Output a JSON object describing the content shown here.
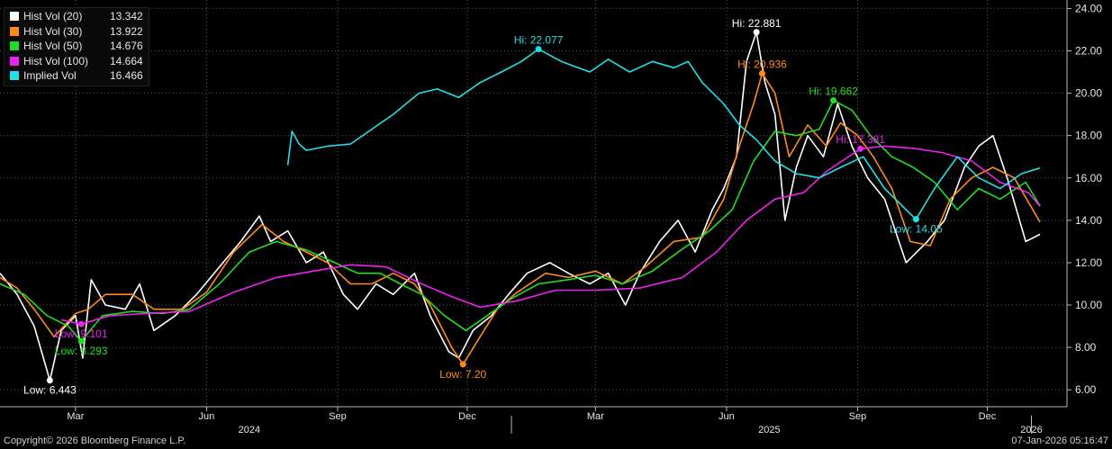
{
  "chart_data": {
    "type": "line",
    "ylim": [
      5.2,
      24.4
    ],
    "y_ticks": [
      "24.00",
      "22.00",
      "20.00",
      "18.00",
      "16.00",
      "14.00",
      "12.00",
      "10.00",
      "8.00",
      "6.00"
    ],
    "x_range": [
      "2024-01-08",
      "2026-01-07"
    ],
    "x_ticks_months": [
      {
        "date": "2024-03-01",
        "label": "Mar"
      },
      {
        "date": "2024-06-01",
        "label": "Jun"
      },
      {
        "date": "2024-09-01",
        "label": "Sep"
      },
      {
        "date": "2024-12-01",
        "label": "Dec"
      },
      {
        "date": "2025-03-01",
        "label": "Mar"
      },
      {
        "date": "2025-06-01",
        "label": "Jun"
      },
      {
        "date": "2025-09-01",
        "label": "Sep"
      },
      {
        "date": "2025-12-01",
        "label": "Dec"
      }
    ],
    "x_ticks_years": [
      {
        "date": "2024-07-01",
        "label": "2024"
      },
      {
        "date": "2025-07-01",
        "label": "2025"
      },
      {
        "date": "2026-01-01",
        "label": "2026"
      }
    ],
    "grid": true,
    "legend_position": "top-left",
    "series": [
      {
        "name": "Hist Vol (20)",
        "last": "13.342",
        "color": "#ffffff",
        "points": [
          [
            "2024-01-08",
            11.5
          ],
          [
            "2024-01-20",
            10.5
          ],
          [
            "2024-02-01",
            9.0
          ],
          [
            "2024-02-12",
            6.44
          ],
          [
            "2024-02-20",
            8.8
          ],
          [
            "2024-03-01",
            9.5
          ],
          [
            "2024-03-06",
            7.5
          ],
          [
            "2024-03-12",
            11.2
          ],
          [
            "2024-03-22",
            10.0
          ],
          [
            "2024-04-05",
            9.8
          ],
          [
            "2024-04-15",
            11.0
          ],
          [
            "2024-04-25",
            8.8
          ],
          [
            "2024-05-10",
            9.5
          ],
          [
            "2024-05-25",
            10.5
          ],
          [
            "2024-06-10",
            11.8
          ],
          [
            "2024-06-25",
            13.0
          ],
          [
            "2024-07-08",
            14.2
          ],
          [
            "2024-07-16",
            13.0
          ],
          [
            "2024-07-28",
            13.5
          ],
          [
            "2024-08-10",
            12.0
          ],
          [
            "2024-08-22",
            12.5
          ],
          [
            "2024-09-05",
            10.5
          ],
          [
            "2024-09-15",
            9.8
          ],
          [
            "2024-09-28",
            11.0
          ],
          [
            "2024-10-10",
            10.5
          ],
          [
            "2024-10-25",
            11.5
          ],
          [
            "2024-11-05",
            9.5
          ],
          [
            "2024-11-18",
            7.8
          ],
          [
            "2024-11-25",
            7.5
          ],
          [
            "2024-12-05",
            8.8
          ],
          [
            "2024-12-18",
            9.5
          ],
          [
            "2024-12-30",
            10.5
          ],
          [
            "2025-01-12",
            11.5
          ],
          [
            "2025-01-28",
            12.0
          ],
          [
            "2025-02-10",
            11.5
          ],
          [
            "2025-02-25",
            11.0
          ],
          [
            "2025-03-10",
            11.5
          ],
          [
            "2025-03-22",
            10.0
          ],
          [
            "2025-04-01",
            11.5
          ],
          [
            "2025-04-15",
            13.0
          ],
          [
            "2025-04-28",
            14.0
          ],
          [
            "2025-05-10",
            12.5
          ],
          [
            "2025-05-22",
            14.5
          ],
          [
            "2025-05-30",
            15.5
          ],
          [
            "2025-06-08",
            17.0
          ],
          [
            "2025-06-15",
            21.5
          ],
          [
            "2025-06-22",
            22.88
          ],
          [
            "2025-06-28",
            20.5
          ],
          [
            "2025-07-05",
            19.0
          ],
          [
            "2025-07-12",
            14.0
          ],
          [
            "2025-07-20",
            16.5
          ],
          [
            "2025-07-28",
            18.0
          ],
          [
            "2025-08-08",
            17.0
          ],
          [
            "2025-08-18",
            19.5
          ],
          [
            "2025-08-28",
            17.5
          ],
          [
            "2025-09-08",
            16.0
          ],
          [
            "2025-09-20",
            15.0
          ],
          [
            "2025-10-05",
            12.0
          ],
          [
            "2025-10-20",
            13.0
          ],
          [
            "2025-11-01",
            14.0
          ],
          [
            "2025-11-15",
            16.5
          ],
          [
            "2025-11-25",
            17.5
          ],
          [
            "2025-12-05",
            18.0
          ],
          [
            "2025-12-15",
            16.0
          ],
          [
            "2025-12-28",
            13.0
          ],
          [
            "2026-01-07",
            13.34
          ]
        ]
      },
      {
        "name": "Hist Vol (30)",
        "last": "13.922",
        "color": "#ff8c1a",
        "points": [
          [
            "2024-01-08",
            11.3
          ],
          [
            "2024-01-20",
            10.8
          ],
          [
            "2024-02-01",
            9.8
          ],
          [
            "2024-02-15",
            8.5
          ],
          [
            "2024-03-01",
            9.6
          ],
          [
            "2024-03-10",
            9.8
          ],
          [
            "2024-03-22",
            10.5
          ],
          [
            "2024-04-10",
            10.5
          ],
          [
            "2024-04-25",
            9.8
          ],
          [
            "2024-05-15",
            9.8
          ],
          [
            "2024-06-01",
            10.6
          ],
          [
            "2024-06-20",
            12.5
          ],
          [
            "2024-07-10",
            13.8
          ],
          [
            "2024-07-25",
            13.0
          ],
          [
            "2024-08-10",
            12.5
          ],
          [
            "2024-08-25",
            12.0
          ],
          [
            "2024-09-10",
            11.0
          ],
          [
            "2024-09-25",
            11.0
          ],
          [
            "2024-10-10",
            11.5
          ],
          [
            "2024-10-25",
            11.0
          ],
          [
            "2024-11-05",
            10.0
          ],
          [
            "2024-11-20",
            8.0
          ],
          [
            "2024-11-28",
            7.2
          ],
          [
            "2024-12-10",
            8.5
          ],
          [
            "2024-12-22",
            9.8
          ],
          [
            "2025-01-05",
            10.6
          ],
          [
            "2025-01-25",
            11.5
          ],
          [
            "2025-02-10",
            11.3
          ],
          [
            "2025-03-01",
            11.6
          ],
          [
            "2025-03-20",
            11.0
          ],
          [
            "2025-04-05",
            11.8
          ],
          [
            "2025-04-25",
            13.0
          ],
          [
            "2025-05-15",
            13.2
          ],
          [
            "2025-05-30",
            15.0
          ],
          [
            "2025-06-10",
            17.5
          ],
          [
            "2025-06-20",
            19.5
          ],
          [
            "2025-06-26",
            20.94
          ],
          [
            "2025-07-05",
            20.0
          ],
          [
            "2025-07-15",
            17.0
          ],
          [
            "2025-07-28",
            18.5
          ],
          [
            "2025-08-10",
            17.5
          ],
          [
            "2025-08-20",
            18.6
          ],
          [
            "2025-09-01",
            18.0
          ],
          [
            "2025-09-12",
            17.0
          ],
          [
            "2025-09-25",
            15.5
          ],
          [
            "2025-10-08",
            13.0
          ],
          [
            "2025-10-22",
            12.8
          ],
          [
            "2025-11-05",
            15.0
          ],
          [
            "2025-11-20",
            16.0
          ],
          [
            "2025-12-05",
            16.5
          ],
          [
            "2025-12-20",
            16.0
          ],
          [
            "2026-01-07",
            13.92
          ]
        ]
      },
      {
        "name": "Hist Vol (50)",
        "last": "14.676",
        "color": "#22dd22",
        "points": [
          [
            "2024-01-08",
            11.0
          ],
          [
            "2024-01-25",
            10.5
          ],
          [
            "2024-02-10",
            9.5
          ],
          [
            "2024-02-25",
            9.0
          ],
          [
            "2024-03-05",
            8.29
          ],
          [
            "2024-03-20",
            9.5
          ],
          [
            "2024-04-10",
            9.7
          ],
          [
            "2024-05-01",
            9.6
          ],
          [
            "2024-05-20",
            9.8
          ],
          [
            "2024-06-10",
            11.0
          ],
          [
            "2024-07-01",
            12.5
          ],
          [
            "2024-07-20",
            13.0
          ],
          [
            "2024-08-10",
            12.6
          ],
          [
            "2024-08-30",
            12.0
          ],
          [
            "2024-09-15",
            11.5
          ],
          [
            "2024-10-01",
            11.5
          ],
          [
            "2024-10-15",
            11.0
          ],
          [
            "2024-10-30",
            10.5
          ],
          [
            "2024-11-15",
            9.5
          ],
          [
            "2024-11-30",
            8.8
          ],
          [
            "2024-12-15",
            9.5
          ],
          [
            "2025-01-01",
            10.3
          ],
          [
            "2025-01-20",
            11.0
          ],
          [
            "2025-02-10",
            11.2
          ],
          [
            "2025-03-01",
            11.4
          ],
          [
            "2025-03-20",
            11.0
          ],
          [
            "2025-04-10",
            11.6
          ],
          [
            "2025-04-30",
            12.6
          ],
          [
            "2025-05-20",
            13.5
          ],
          [
            "2025-06-05",
            14.5
          ],
          [
            "2025-06-20",
            16.8
          ],
          [
            "2025-07-05",
            18.2
          ],
          [
            "2025-07-20",
            18.0
          ],
          [
            "2025-08-05",
            18.3
          ],
          [
            "2025-08-15",
            19.66
          ],
          [
            "2025-08-28",
            19.2
          ],
          [
            "2025-09-10",
            18.0
          ],
          [
            "2025-09-25",
            17.0
          ],
          [
            "2025-10-10",
            16.5
          ],
          [
            "2025-10-25",
            15.8
          ],
          [
            "2025-11-10",
            14.5
          ],
          [
            "2025-11-25",
            15.5
          ],
          [
            "2025-12-10",
            15.0
          ],
          [
            "2025-12-28",
            15.8
          ],
          [
            "2026-01-07",
            14.68
          ]
        ]
      },
      {
        "name": "Hist Vol (100)",
        "last": "14.664",
        "color": "#ee22ee",
        "points": [
          [
            "2024-02-20",
            9.3
          ],
          [
            "2024-03-05",
            9.1
          ],
          [
            "2024-03-25",
            9.5
          ],
          [
            "2024-04-20",
            9.6
          ],
          [
            "2024-05-20",
            9.7
          ],
          [
            "2024-06-20",
            10.6
          ],
          [
            "2024-07-20",
            11.3
          ],
          [
            "2024-08-15",
            11.6
          ],
          [
            "2024-09-10",
            11.9
          ],
          [
            "2024-10-05",
            11.8
          ],
          [
            "2024-10-30",
            11.0
          ],
          [
            "2024-11-20",
            10.4
          ],
          [
            "2024-12-10",
            9.9
          ],
          [
            "2025-01-05",
            10.2
          ],
          [
            "2025-02-01",
            10.7
          ],
          [
            "2025-03-01",
            10.7
          ],
          [
            "2025-04-01",
            10.8
          ],
          [
            "2025-05-01",
            11.3
          ],
          [
            "2025-05-25",
            12.5
          ],
          [
            "2025-06-15",
            14.0
          ],
          [
            "2025-07-05",
            15.0
          ],
          [
            "2025-07-25",
            15.3
          ],
          [
            "2025-08-10",
            16.3
          ],
          [
            "2025-08-30",
            17.2
          ],
          [
            "2025-09-03",
            17.38
          ],
          [
            "2025-09-20",
            17.5
          ],
          [
            "2025-10-10",
            17.4
          ],
          [
            "2025-10-30",
            17.2
          ],
          [
            "2025-11-20",
            16.8
          ],
          [
            "2025-12-10",
            15.8
          ],
          [
            "2025-12-30",
            15.3
          ],
          [
            "2026-01-07",
            14.66
          ]
        ]
      },
      {
        "name": "Implied Vol",
        "last": "16.466",
        "color": "#22e0e8",
        "points": [
          [
            "2024-07-28",
            16.6
          ],
          [
            "2024-07-31",
            18.2
          ],
          [
            "2024-08-05",
            17.6
          ],
          [
            "2024-08-10",
            17.3
          ],
          [
            "2024-08-25",
            17.5
          ],
          [
            "2024-09-10",
            17.6
          ],
          [
            "2024-09-25",
            18.3
          ],
          [
            "2024-10-10",
            19.0
          ],
          [
            "2024-10-28",
            20.0
          ],
          [
            "2024-11-10",
            20.2
          ],
          [
            "2024-11-25",
            19.8
          ],
          [
            "2024-12-10",
            20.5
          ],
          [
            "2024-12-25",
            21.0
          ],
          [
            "2025-01-08",
            21.5
          ],
          [
            "2025-01-20",
            22.08
          ],
          [
            "2025-02-05",
            21.5
          ],
          [
            "2025-02-25",
            21.0
          ],
          [
            "2025-03-10",
            21.6
          ],
          [
            "2025-03-25",
            21.0
          ],
          [
            "2025-04-10",
            21.5
          ],
          [
            "2025-04-25",
            21.2
          ],
          [
            "2025-05-05",
            21.5
          ],
          [
            "2025-05-15",
            20.5
          ],
          [
            "2025-05-30",
            19.5
          ],
          [
            "2025-06-10",
            18.5
          ],
          [
            "2025-06-22",
            17.8
          ],
          [
            "2025-07-05",
            16.8
          ],
          [
            "2025-07-20",
            16.2
          ],
          [
            "2025-08-05",
            16.0
          ],
          [
            "2025-08-20",
            16.5
          ],
          [
            "2025-09-05",
            17.0
          ],
          [
            "2025-09-20",
            15.5
          ],
          [
            "2025-10-05",
            14.5
          ],
          [
            "2025-10-12",
            14.05
          ],
          [
            "2025-10-25",
            15.5
          ],
          [
            "2025-11-10",
            17.0
          ],
          [
            "2025-11-25",
            16.0
          ],
          [
            "2025-12-10",
            15.5
          ],
          [
            "2025-12-25",
            16.2
          ],
          [
            "2026-01-07",
            16.47
          ]
        ]
      }
    ],
    "annotations": [
      {
        "text": "Low: 6.443",
        "date": "2024-02-12",
        "value": 6.443,
        "color": "#ffffff",
        "anchor": "below"
      },
      {
        "text": "Low: 9.101",
        "date": "2024-03-05",
        "value": 9.101,
        "color": "#ee22ee",
        "anchor": "below"
      },
      {
        "text": "Low: 8.293",
        "date": "2024-03-05",
        "value": 8.293,
        "color": "#22dd22",
        "anchor": "below"
      },
      {
        "text": "Low: 7.20",
        "date": "2024-11-28",
        "value": 7.2,
        "color": "#ff8c1a",
        "anchor": "below"
      },
      {
        "text": "Hi: 22.077",
        "date": "2025-01-20",
        "value": 22.077,
        "color": "#22e0e8",
        "anchor": "above"
      },
      {
        "text": "Hi: 22.881",
        "date": "2025-06-22",
        "value": 22.881,
        "color": "#ffffff",
        "anchor": "above"
      },
      {
        "text": "Hi: 20.936",
        "date": "2025-06-26",
        "value": 20.936,
        "color": "#ff8c1a",
        "anchor": "above"
      },
      {
        "text": "Hi: 19.662",
        "date": "2025-08-15",
        "value": 19.662,
        "color": "#22dd22",
        "anchor": "above"
      },
      {
        "text": "Hi: 17.381",
        "date": "2025-09-03",
        "value": 17.381,
        "color": "#ee22ee",
        "anchor": "above"
      },
      {
        "text": "Low: 14.05",
        "date": "2025-10-12",
        "value": 14.05,
        "color": "#22e0e8",
        "anchor": "below"
      }
    ]
  },
  "footer": {
    "copyright": "Copyright© 2026 Bloomberg Finance L.P.",
    "timestamp": "07-Jan-2026 05:16:47"
  }
}
